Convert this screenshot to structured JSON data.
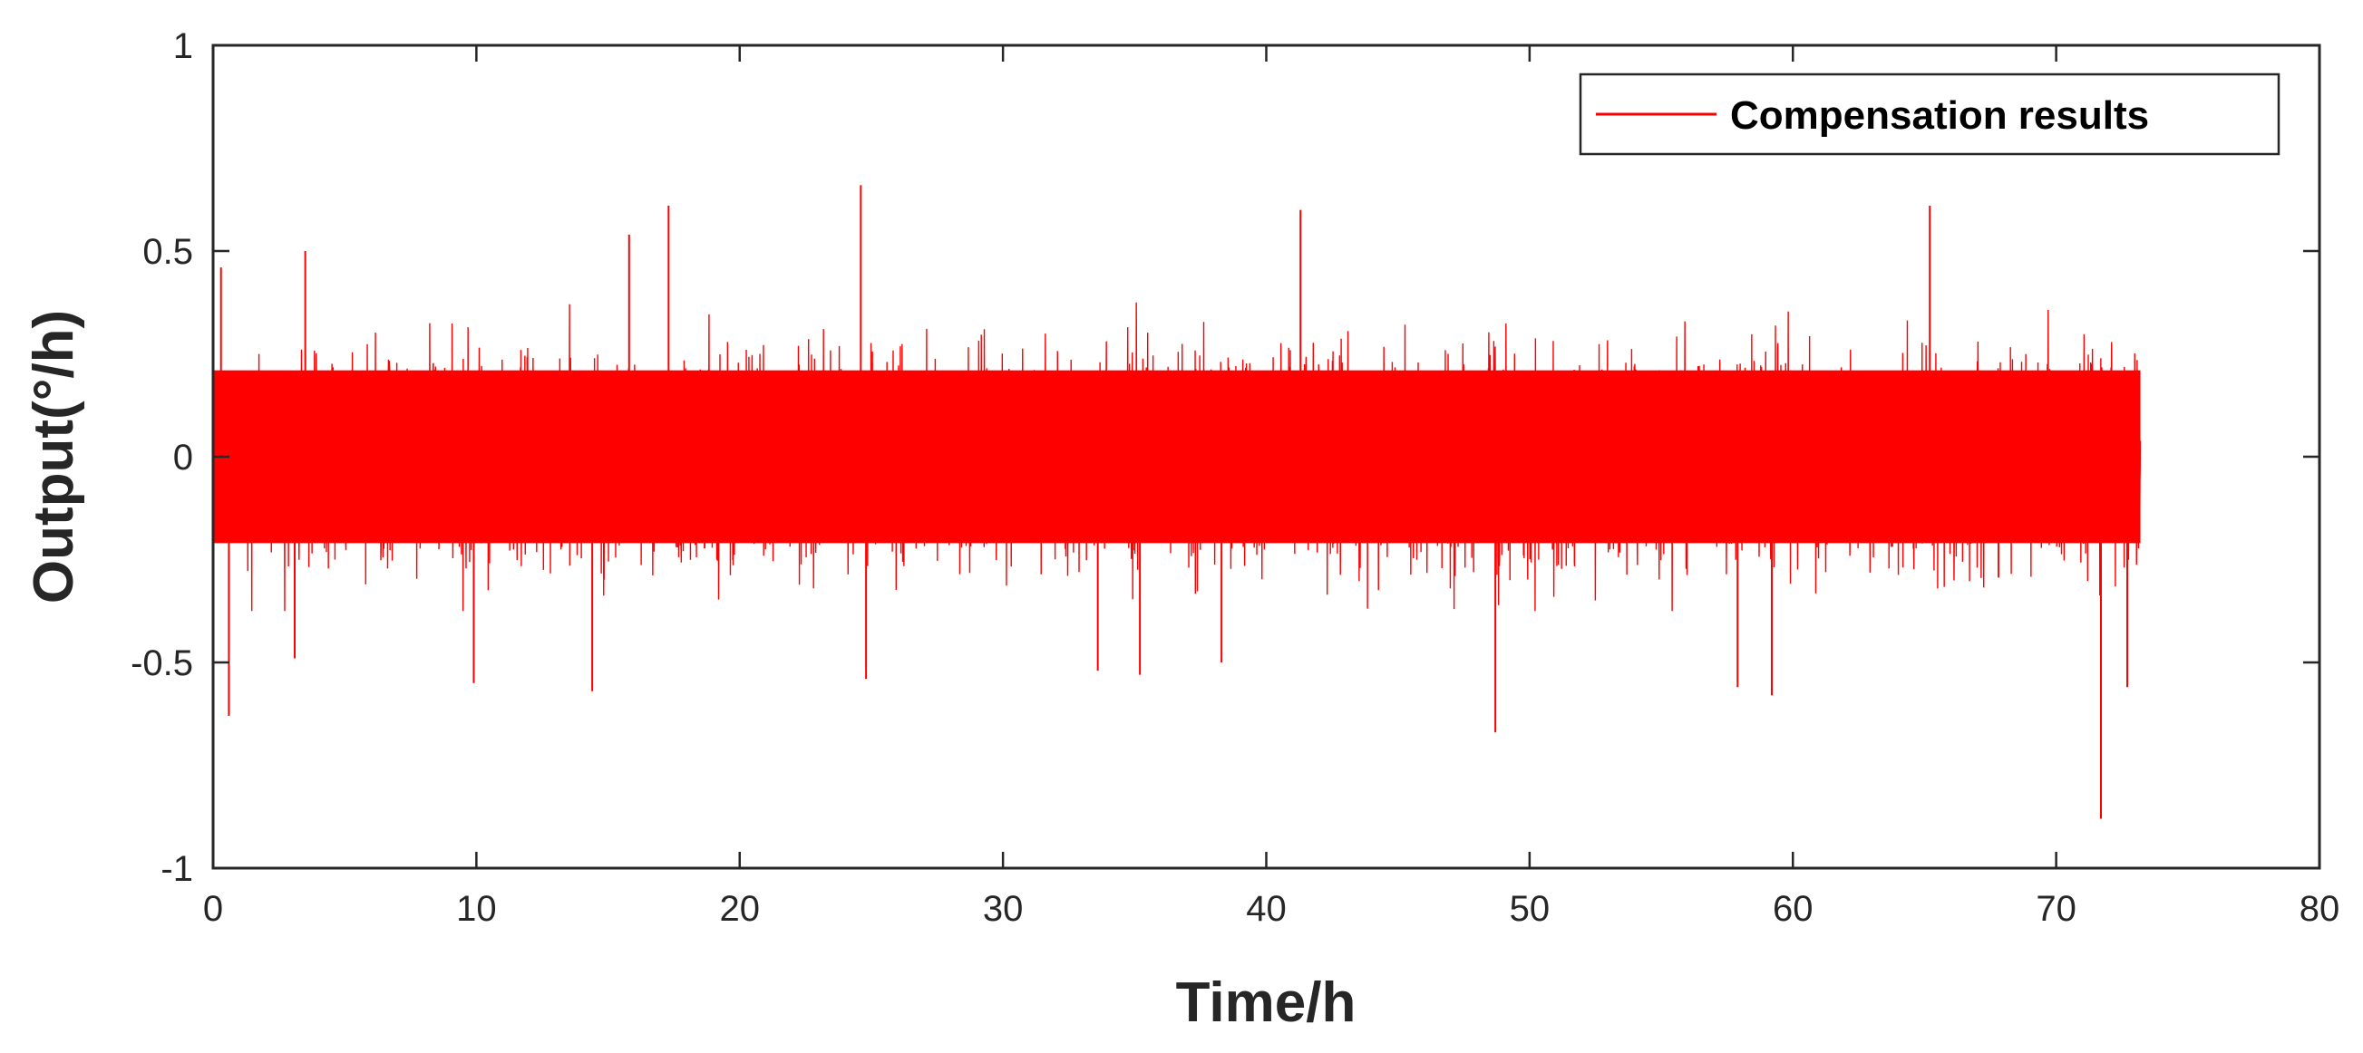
{
  "chart_data": {
    "type": "line",
    "xlabel": "Time/h",
    "ylabel": "Output(°/h)",
    "xlim": [
      0,
      80
    ],
    "ylim": [
      -1,
      1
    ],
    "x_ticks": [
      0,
      10,
      20,
      30,
      40,
      50,
      60,
      70,
      80
    ],
    "y_ticks": [
      -1,
      -0.5,
      0,
      0.5,
      1
    ],
    "x_tick_labels": [
      "0",
      "10",
      "20",
      "30",
      "40",
      "50",
      "60",
      "70",
      "80"
    ],
    "y_tick_labels": [
      "-1",
      "-0.5",
      "0",
      "0.5",
      "1"
    ],
    "grid": false,
    "legend_position": "top-right",
    "series": [
      {
        "name": "Compensation results",
        "color": "#ff0000",
        "x_range": [
          0,
          73.2
        ],
        "typical_band": [
          -0.3,
          0.3
        ],
        "peaks": [
          {
            "x": 0.3,
            "y": 0.46
          },
          {
            "x": 0.6,
            "y": -0.63
          },
          {
            "x": 3.1,
            "y": -0.49
          },
          {
            "x": 3.5,
            "y": 0.5
          },
          {
            "x": 9.9,
            "y": -0.55
          },
          {
            "x": 14.4,
            "y": -0.57
          },
          {
            "x": 15.8,
            "y": 0.54
          },
          {
            "x": 17.3,
            "y": 0.61
          },
          {
            "x": 24.6,
            "y": 0.66
          },
          {
            "x": 24.8,
            "y": -0.54
          },
          {
            "x": 33.6,
            "y": -0.52
          },
          {
            "x": 35.2,
            "y": -0.53
          },
          {
            "x": 38.3,
            "y": -0.5
          },
          {
            "x": 41.3,
            "y": 0.6
          },
          {
            "x": 48.7,
            "y": -0.67
          },
          {
            "x": 57.9,
            "y": -0.56
          },
          {
            "x": 59.2,
            "y": -0.58
          },
          {
            "x": 65.2,
            "y": 0.61
          },
          {
            "x": 71.7,
            "y": -0.88
          },
          {
            "x": 72.7,
            "y": -0.56
          }
        ]
      }
    ]
  }
}
